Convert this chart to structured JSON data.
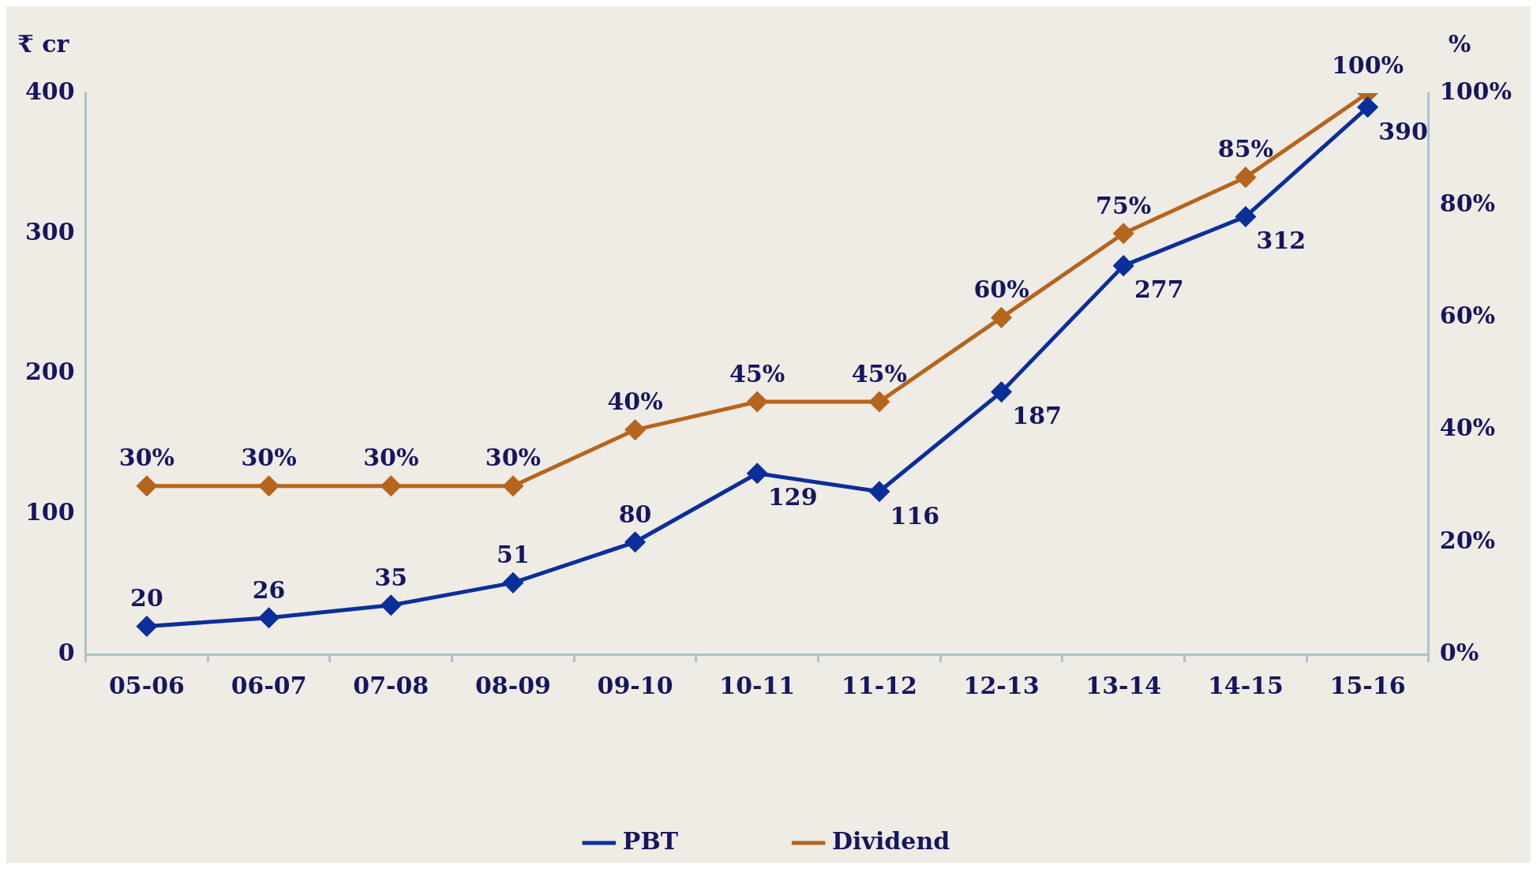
{
  "chart_data": {
    "type": "line",
    "ylabel": "₹ cr",
    "y2label": "%",
    "categories": [
      "05-06",
      "06-07",
      "07-08",
      "08-09",
      "09-10",
      "10-11",
      "11-12",
      "12-13",
      "13-14",
      "14-15",
      "15-16"
    ],
    "series": [
      {
        "name": "PBT",
        "color": "#0a2f9a",
        "values": [
          20,
          26,
          35,
          51,
          80,
          129,
          116,
          187,
          277,
          312,
          390
        ],
        "value_labels": [
          "20",
          "26",
          "35",
          "51",
          "80",
          "129",
          "116",
          "187",
          "277",
          "312",
          "390"
        ]
      },
      {
        "name": "Dividend",
        "color": "#b5651d",
        "axis": "y2",
        "values": [
          30,
          30,
          30,
          30,
          40,
          45,
          45,
          60,
          75,
          85,
          100
        ],
        "value_labels": [
          "30%",
          "30%",
          "30%",
          "30%",
          "40%",
          "45%",
          "45%",
          "60%",
          "75%",
          "85%",
          "100%"
        ]
      }
    ],
    "ylim": [
      0,
      400
    ],
    "yticks": [
      0,
      100,
      200,
      300,
      400
    ],
    "y2lim": [
      0,
      100
    ],
    "y2ticks": [
      {
        "value": 0,
        "label": "0%"
      },
      {
        "value": 20,
        "label": "20%"
      },
      {
        "value": 40,
        "label": "40%"
      },
      {
        "value": 60,
        "label": "60%"
      },
      {
        "value": 80,
        "label": "80%"
      },
      {
        "value": 100,
        "label": "100%"
      }
    ],
    "marker": "diamond",
    "line_style": "solid",
    "legend": "bottom",
    "grid": false
  }
}
